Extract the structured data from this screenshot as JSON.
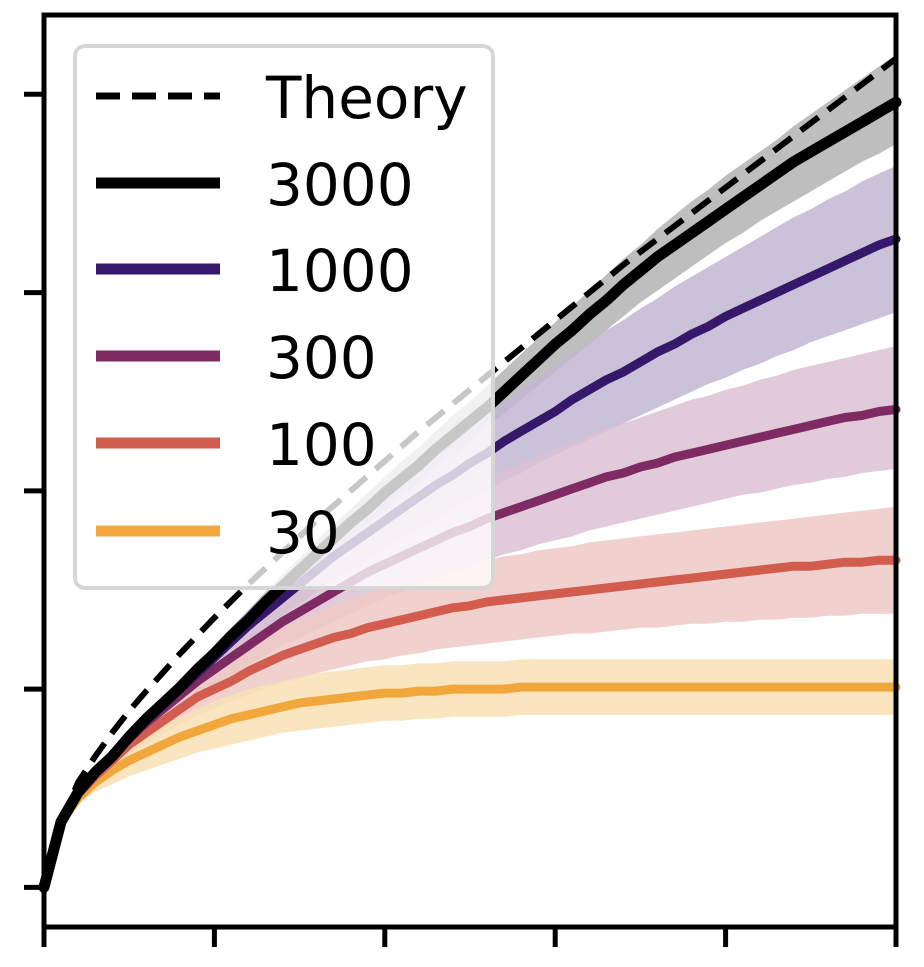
{
  "chart_data": {
    "type": "line",
    "title": "",
    "xlabel": "",
    "ylabel": "",
    "xlim": [
      0,
      50
    ],
    "ylim": [
      -0.2,
      4.4
    ],
    "grid": false,
    "legend_position": "top-left",
    "x_ticks": [
      0,
      10,
      20,
      30,
      40,
      50
    ],
    "y_ticks": [
      0,
      1,
      2,
      3,
      4
    ],
    "x": [
      0,
      1,
      2,
      3,
      4,
      5,
      6,
      7,
      8,
      9,
      10,
      11,
      12,
      13,
      14,
      15,
      16,
      17,
      18,
      19,
      20,
      21,
      22,
      23,
      24,
      25,
      26,
      27,
      28,
      29,
      30,
      31,
      32,
      33,
      34,
      35,
      36,
      37,
      38,
      39,
      40,
      41,
      42,
      43,
      44,
      45,
      46,
      47,
      48,
      49,
      50
    ],
    "theory": {
      "name": "Theory",
      "color": "#000000",
      "x": [
        0,
        0.5,
        1,
        2,
        3,
        4,
        5,
        6,
        8,
        10,
        12,
        14,
        16,
        18,
        20,
        22,
        24,
        26,
        28,
        30,
        32,
        34,
        36,
        38,
        40,
        42,
        44,
        46,
        48,
        50
      ],
      "values": [
        0,
        0.18,
        0.33,
        0.53,
        0.66,
        0.78,
        0.89,
        0.99,
        1.18,
        1.36,
        1.53,
        1.69,
        1.85,
        2.0,
        2.15,
        2.3,
        2.44,
        2.58,
        2.72,
        2.86,
        3.0,
        3.14,
        3.27,
        3.4,
        3.53,
        3.66,
        3.79,
        3.92,
        4.05,
        4.18
      ]
    },
    "series": [
      {
        "name": "3000",
        "color": "#000000",
        "band_color": "#b3b3b3",
        "values": [
          0,
          0.33,
          0.48,
          0.58,
          0.66,
          0.76,
          0.85,
          0.93,
          1.01,
          1.1,
          1.18,
          1.27,
          1.35,
          1.44,
          1.52,
          1.6,
          1.68,
          1.76,
          1.84,
          1.91,
          1.99,
          2.06,
          2.13,
          2.21,
          2.28,
          2.35,
          2.42,
          2.5,
          2.58,
          2.66,
          2.74,
          2.81,
          2.89,
          2.96,
          3.04,
          3.11,
          3.18,
          3.24,
          3.3,
          3.36,
          3.42,
          3.48,
          3.54,
          3.6,
          3.66,
          3.71,
          3.76,
          3.81,
          3.86,
          3.91,
          3.96
        ],
        "band_low": [
          0,
          0.32,
          0.46,
          0.56,
          0.64,
          0.73,
          0.82,
          0.9,
          0.98,
          1.06,
          1.14,
          1.22,
          1.3,
          1.38,
          1.46,
          1.54,
          1.61,
          1.69,
          1.76,
          1.83,
          1.9,
          1.97,
          2.04,
          2.11,
          2.18,
          2.25,
          2.32,
          2.39,
          2.46,
          2.53,
          2.6,
          2.67,
          2.74,
          2.81,
          2.88,
          2.95,
          3.01,
          3.07,
          3.13,
          3.19,
          3.25,
          3.3,
          3.36,
          3.41,
          3.46,
          3.51,
          3.56,
          3.61,
          3.66,
          3.7,
          3.75
        ],
        "band_high": [
          0,
          0.34,
          0.5,
          0.6,
          0.69,
          0.79,
          0.88,
          0.96,
          1.04,
          1.13,
          1.22,
          1.31,
          1.4,
          1.49,
          1.58,
          1.66,
          1.75,
          1.83,
          1.91,
          1.99,
          2.07,
          2.15,
          2.22,
          2.3,
          2.38,
          2.45,
          2.53,
          2.61,
          2.69,
          2.77,
          2.85,
          2.93,
          3.01,
          3.09,
          3.17,
          3.24,
          3.32,
          3.39,
          3.46,
          3.52,
          3.59,
          3.65,
          3.71,
          3.77,
          3.84,
          3.9,
          3.96,
          4.02,
          4.08,
          4.14,
          4.2
        ]
      },
      {
        "name": "1000",
        "color": "#36186b",
        "band_color": "#c2b7d4",
        "values": [
          0,
          0.33,
          0.48,
          0.58,
          0.66,
          0.76,
          0.84,
          0.92,
          1.0,
          1.08,
          1.16,
          1.24,
          1.32,
          1.39,
          1.46,
          1.53,
          1.6,
          1.67,
          1.73,
          1.79,
          1.85,
          1.91,
          1.97,
          2.03,
          2.08,
          2.14,
          2.19,
          2.25,
          2.3,
          2.35,
          2.4,
          2.46,
          2.51,
          2.56,
          2.6,
          2.65,
          2.7,
          2.74,
          2.79,
          2.83,
          2.88,
          2.92,
          2.96,
          3.0,
          3.04,
          3.08,
          3.12,
          3.16,
          3.2,
          3.24,
          3.27
        ],
        "band_low": [
          0,
          0.32,
          0.46,
          0.56,
          0.64,
          0.73,
          0.81,
          0.88,
          0.96,
          1.03,
          1.1,
          1.17,
          1.24,
          1.31,
          1.37,
          1.43,
          1.49,
          1.55,
          1.6,
          1.66,
          1.71,
          1.76,
          1.81,
          1.86,
          1.91,
          1.96,
          2.0,
          2.05,
          2.09,
          2.14,
          2.18,
          2.22,
          2.26,
          2.3,
          2.34,
          2.38,
          2.42,
          2.46,
          2.5,
          2.54,
          2.57,
          2.61,
          2.64,
          2.68,
          2.71,
          2.75,
          2.78,
          2.81,
          2.84,
          2.87,
          2.9
        ],
        "band_high": [
          0,
          0.34,
          0.5,
          0.6,
          0.69,
          0.79,
          0.87,
          0.96,
          1.04,
          1.13,
          1.22,
          1.31,
          1.4,
          1.47,
          1.55,
          1.63,
          1.71,
          1.79,
          1.86,
          1.93,
          2.0,
          2.07,
          2.14,
          2.21,
          2.27,
          2.33,
          2.39,
          2.45,
          2.51,
          2.57,
          2.63,
          2.69,
          2.75,
          2.81,
          2.86,
          2.92,
          2.97,
          3.03,
          3.08,
          3.13,
          3.18,
          3.23,
          3.28,
          3.33,
          3.38,
          3.42,
          3.47,
          3.51,
          3.56,
          3.6,
          3.64
        ]
      },
      {
        "name": "300",
        "color": "#7e2b63",
        "band_color": "#dcc1d3",
        "values": [
          0,
          0.33,
          0.48,
          0.58,
          0.66,
          0.75,
          0.83,
          0.9,
          0.97,
          1.04,
          1.1,
          1.16,
          1.22,
          1.28,
          1.34,
          1.39,
          1.44,
          1.49,
          1.54,
          1.59,
          1.63,
          1.67,
          1.71,
          1.75,
          1.79,
          1.82,
          1.86,
          1.89,
          1.92,
          1.95,
          1.98,
          2.01,
          2.04,
          2.07,
          2.09,
          2.12,
          2.14,
          2.17,
          2.19,
          2.21,
          2.23,
          2.25,
          2.27,
          2.29,
          2.31,
          2.33,
          2.35,
          2.37,
          2.38,
          2.4,
          2.41
        ],
        "band_low": [
          0,
          0.32,
          0.46,
          0.56,
          0.63,
          0.71,
          0.79,
          0.85,
          0.91,
          0.97,
          1.02,
          1.07,
          1.12,
          1.17,
          1.22,
          1.26,
          1.3,
          1.34,
          1.38,
          1.42,
          1.46,
          1.49,
          1.53,
          1.56,
          1.59,
          1.62,
          1.65,
          1.68,
          1.7,
          1.73,
          1.75,
          1.77,
          1.8,
          1.82,
          1.84,
          1.86,
          1.88,
          1.9,
          1.92,
          1.94,
          1.96,
          1.98,
          1.99,
          2.01,
          2.03,
          2.04,
          2.06,
          2.07,
          2.09,
          2.1,
          2.11
        ],
        "band_high": [
          0,
          0.34,
          0.5,
          0.6,
          0.69,
          0.79,
          0.87,
          0.95,
          1.03,
          1.11,
          1.18,
          1.25,
          1.32,
          1.39,
          1.46,
          1.52,
          1.58,
          1.64,
          1.7,
          1.75,
          1.8,
          1.85,
          1.89,
          1.94,
          1.98,
          2.02,
          2.06,
          2.1,
          2.14,
          2.17,
          2.21,
          2.24,
          2.28,
          2.31,
          2.34,
          2.37,
          2.4,
          2.43,
          2.46,
          2.48,
          2.51,
          2.53,
          2.56,
          2.58,
          2.61,
          2.63,
          2.65,
          2.67,
          2.69,
          2.71,
          2.73
        ]
      },
      {
        "name": "100",
        "color": "#d25c4d",
        "band_color": "#efc9c4",
        "values": [
          0,
          0.33,
          0.47,
          0.56,
          0.64,
          0.72,
          0.78,
          0.84,
          0.9,
          0.96,
          1.0,
          1.04,
          1.09,
          1.13,
          1.17,
          1.2,
          1.23,
          1.26,
          1.28,
          1.31,
          1.33,
          1.35,
          1.37,
          1.39,
          1.41,
          1.42,
          1.44,
          1.45,
          1.46,
          1.47,
          1.48,
          1.49,
          1.5,
          1.51,
          1.52,
          1.53,
          1.54,
          1.55,
          1.56,
          1.57,
          1.58,
          1.59,
          1.6,
          1.61,
          1.62,
          1.62,
          1.63,
          1.64,
          1.64,
          1.65,
          1.65
        ],
        "band_low": [
          0,
          0.32,
          0.45,
          0.53,
          0.6,
          0.67,
          0.72,
          0.77,
          0.82,
          0.87,
          0.9,
          0.94,
          0.97,
          1.0,
          1.03,
          1.05,
          1.08,
          1.1,
          1.12,
          1.14,
          1.15,
          1.17,
          1.18,
          1.2,
          1.21,
          1.22,
          1.23,
          1.24,
          1.25,
          1.26,
          1.27,
          1.28,
          1.28,
          1.29,
          1.3,
          1.31,
          1.31,
          1.32,
          1.33,
          1.33,
          1.34,
          1.34,
          1.35,
          1.35,
          1.36,
          1.36,
          1.37,
          1.37,
          1.38,
          1.38,
          1.38
        ],
        "band_high": [
          0,
          0.34,
          0.49,
          0.6,
          0.68,
          0.77,
          0.84,
          0.91,
          0.98,
          1.05,
          1.1,
          1.15,
          1.21,
          1.26,
          1.31,
          1.35,
          1.39,
          1.42,
          1.45,
          1.48,
          1.51,
          1.54,
          1.56,
          1.59,
          1.61,
          1.63,
          1.65,
          1.67,
          1.68,
          1.7,
          1.71,
          1.72,
          1.74,
          1.75,
          1.76,
          1.77,
          1.78,
          1.79,
          1.8,
          1.81,
          1.82,
          1.83,
          1.84,
          1.85,
          1.86,
          1.87,
          1.88,
          1.89,
          1.9,
          1.91,
          1.92
        ]
      },
      {
        "name": "30",
        "color": "#f1a73c",
        "band_color": "#f8e2b6",
        "values": [
          0,
          0.33,
          0.45,
          0.53,
          0.59,
          0.64,
          0.68,
          0.72,
          0.76,
          0.79,
          0.82,
          0.85,
          0.87,
          0.89,
          0.91,
          0.93,
          0.94,
          0.95,
          0.96,
          0.97,
          0.98,
          0.98,
          0.99,
          0.99,
          1.0,
          1.0,
          1.0,
          1.0,
          1.01,
          1.01,
          1.01,
          1.01,
          1.01,
          1.01,
          1.01,
          1.01,
          1.01,
          1.01,
          1.01,
          1.01,
          1.01,
          1.01,
          1.01,
          1.01,
          1.01,
          1.01,
          1.01,
          1.01,
          1.01,
          1.01,
          1.01
        ],
        "band_low": [
          0,
          0.32,
          0.42,
          0.48,
          0.52,
          0.56,
          0.59,
          0.62,
          0.65,
          0.68,
          0.7,
          0.72,
          0.74,
          0.76,
          0.78,
          0.79,
          0.8,
          0.81,
          0.82,
          0.83,
          0.84,
          0.84,
          0.85,
          0.85,
          0.86,
          0.86,
          0.86,
          0.86,
          0.87,
          0.87,
          0.87,
          0.87,
          0.87,
          0.87,
          0.87,
          0.87,
          0.87,
          0.87,
          0.87,
          0.87,
          0.87,
          0.87,
          0.87,
          0.87,
          0.87,
          0.87,
          0.87,
          0.87,
          0.87,
          0.87,
          0.87
        ],
        "band_high": [
          0,
          0.34,
          0.48,
          0.58,
          0.66,
          0.72,
          0.77,
          0.82,
          0.86,
          0.9,
          0.94,
          0.97,
          1.0,
          1.02,
          1.04,
          1.06,
          1.08,
          1.09,
          1.1,
          1.11,
          1.12,
          1.12,
          1.13,
          1.13,
          1.14,
          1.14,
          1.14,
          1.14,
          1.15,
          1.15,
          1.15,
          1.15,
          1.15,
          1.15,
          1.15,
          1.15,
          1.15,
          1.15,
          1.15,
          1.15,
          1.15,
          1.15,
          1.15,
          1.15,
          1.15,
          1.15,
          1.15,
          1.15,
          1.15,
          1.15,
          1.15
        ]
      }
    ],
    "legend": [
      {
        "label": "Theory",
        "color": "#000000",
        "style": "dashed"
      },
      {
        "label": "3000",
        "color": "#000000",
        "style": "solid"
      },
      {
        "label": "1000",
        "color": "#36186b",
        "style": "solid"
      },
      {
        "label": "300",
        "color": "#7e2b63",
        "style": "solid"
      },
      {
        "label": "100",
        "color": "#d25c4d",
        "style": "solid"
      },
      {
        "label": "30",
        "color": "#f1a73c",
        "style": "solid"
      }
    ]
  }
}
